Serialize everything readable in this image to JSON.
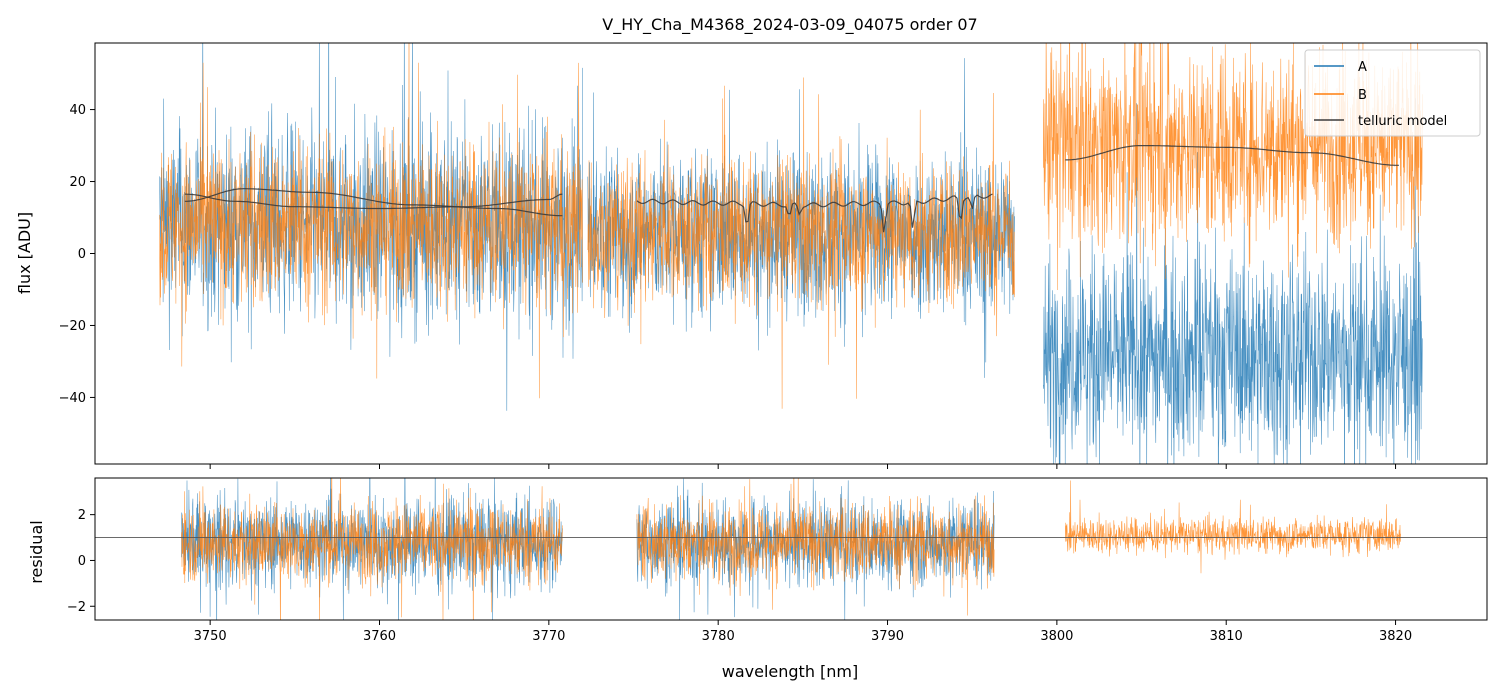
{
  "chart_data": [
    {
      "type": "line",
      "title": "V_HY_Cha_M4368_2024-03-09_04075  order 07",
      "ylabel": "flux [ADU]",
      "xlabel": "",
      "xlim": [
        3743.2,
        3825.4
      ],
      "ylim": [
        -58.5,
        58.5
      ],
      "xticks": [
        3750,
        3760,
        3770,
        3780,
        3790,
        3800,
        3810,
        3820
      ],
      "yticks": [
        40,
        20,
        0,
        -20,
        -40
      ],
      "ytick_labels": [
        "40",
        "20",
        "0",
        "−20",
        "−40"
      ],
      "segments": [
        {
          "x": [
            3747.0,
            3772.0
          ],
          "A": {
            "center": 8,
            "spread": 19
          },
          "B": {
            "center": 8,
            "spread": 16
          }
        },
        {
          "x": [
            3772.3,
            3797.5
          ],
          "A": {
            "center": 6,
            "spread": 16
          },
          "B": {
            "center": 6,
            "spread": 14
          }
        },
        {
          "x": [
            3799.2,
            3821.6
          ],
          "A": {
            "center": -28,
            "spread": 20
          },
          "B": {
            "center": 30,
            "spread": 19
          }
        }
      ],
      "telluric_model": [
        {
          "name": "segment-1a",
          "x": [
            3748.5,
            3751.5,
            3755,
            3760,
            3765,
            3770,
            3770.8
          ],
          "y": [
            16.5,
            14.5,
            13,
            12.5,
            13,
            15,
            16.5
          ]
        },
        {
          "name": "segment-1b",
          "x": [
            3748.5,
            3752,
            3756,
            3762,
            3767,
            3770.8
          ],
          "y": [
            14.5,
            18,
            17,
            13.5,
            12.5,
            10.5
          ]
        },
        {
          "name": "segment-2",
          "x": [
            3775.2,
            3780,
            3785,
            3790,
            3796.2
          ],
          "y": [
            14.5,
            14,
            13.5,
            14,
            16
          ],
          "absorption_lines": [
            [
              3781.7,
              6.5
            ],
            [
              3784.2,
              3.5
            ],
            [
              3784.8,
              2.5
            ],
            [
              3789.8,
              8
            ],
            [
              3791.5,
              8
            ],
            [
              3794.3,
              7
            ],
            [
              3795.0,
              4
            ]
          ]
        },
        {
          "name": "segment-3",
          "x": [
            3800.5,
            3805,
            3810,
            3815,
            3820.2
          ],
          "y": [
            26,
            30,
            29.5,
            28,
            24.5
          ]
        }
      ],
      "series": [
        {
          "name": "A",
          "color": "#1f77b4"
        },
        {
          "name": "B",
          "color": "#ff7f0e"
        },
        {
          "name": "telluric model",
          "color": "#3b3b3b"
        }
      ],
      "legend": {
        "position": "top-right",
        "entries": [
          "A",
          "B",
          "telluric model"
        ]
      }
    },
    {
      "type": "line",
      "title": "",
      "ylabel": "residual",
      "xlabel": "wavelength [nm]",
      "xlim": [
        3743.2,
        3825.4
      ],
      "ylim": [
        -2.6,
        3.6
      ],
      "xticks": [
        3750,
        3760,
        3770,
        3780,
        3790,
        3800,
        3810,
        3820
      ],
      "xtick_labels": [
        "3750",
        "3760",
        "3770",
        "3780",
        "3790",
        "3800",
        "3810",
        "3820"
      ],
      "yticks": [
        2,
        0,
        -2
      ],
      "ytick_labels": [
        "2",
        "0",
        "−2"
      ],
      "reference_line": 1,
      "segments": [
        {
          "x": [
            3748.3,
            3770.8
          ],
          "A": {
            "center": 0.8,
            "spread": 1.4
          },
          "B": {
            "center": 0.8,
            "spread": 1.2
          }
        },
        {
          "x": [
            3775.2,
            3796.3
          ],
          "A": {
            "center": 0.8,
            "spread": 1.3
          },
          "B": {
            "center": 0.8,
            "spread": 1.2
          }
        },
        {
          "x": [
            3800.5,
            3820.3
          ],
          "A": null,
          "B": {
            "center": 1.1,
            "spread": 0.55
          }
        }
      ]
    }
  ]
}
